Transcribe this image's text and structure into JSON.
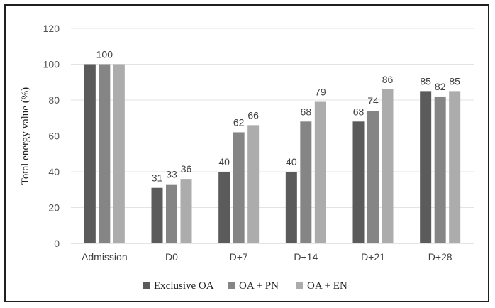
{
  "chart_data": {
    "type": "bar",
    "categories": [
      "Admission",
      "D0",
      "D+7",
      "D+14",
      "D+21",
      "D+28"
    ],
    "series": [
      {
        "name": "Exclusive OA",
        "color": "#5b5b5b",
        "values": [
          100,
          31,
          40,
          40,
          68,
          85
        ]
      },
      {
        "name": "OA + PN",
        "color": "#858585",
        "values": [
          100,
          33,
          62,
          68,
          74,
          82
        ]
      },
      {
        "name": "OA + EN",
        "color": "#acacac",
        "values": [
          100,
          36,
          66,
          79,
          86,
          85
        ]
      }
    ],
    "data_labels": [
      [
        "",
        "31",
        "40",
        "40",
        "68",
        "85"
      ],
      [
        "100",
        "33",
        "62",
        "68",
        "74",
        "82"
      ],
      [
        "",
        "36",
        "66",
        "79",
        "86",
        "85"
      ]
    ],
    "title": "",
    "xlabel": "",
    "ylabel": "Total energy value (%)",
    "ylim": [
      0,
      120
    ],
    "yticks": [
      0,
      20,
      40,
      60,
      80,
      100,
      120
    ],
    "grid": true,
    "legend_position": "bottom"
  }
}
